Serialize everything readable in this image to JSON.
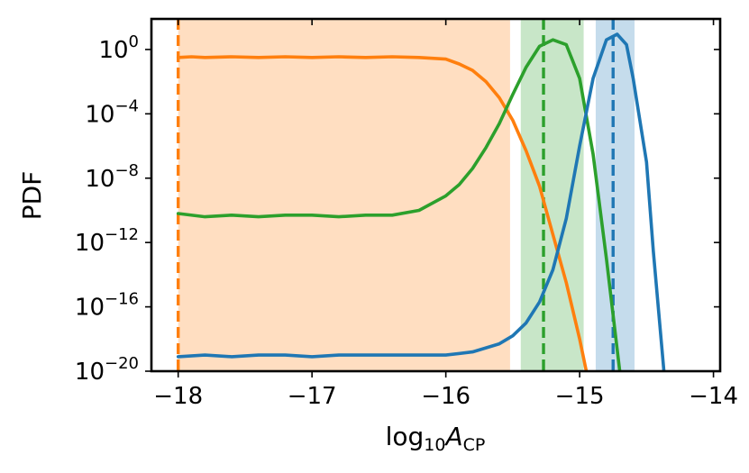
{
  "chart_data": {
    "type": "line",
    "title": "",
    "xlabel": "log10ACP",
    "xlabel_parts": {
      "base": "log",
      "base_sub": "10",
      "var": "A",
      "var_sub": "CP"
    },
    "ylabel": "PDF",
    "xlim": [
      -18.2,
      -13.95
    ],
    "ylim_log10": [
      -20,
      1.9
    ],
    "yscale": "log",
    "grid": false,
    "legend": "none",
    "x_ticks": [
      {
        "value": -18,
        "label": "−18"
      },
      {
        "value": -17,
        "label": "−17"
      },
      {
        "value": -16,
        "label": "−16"
      },
      {
        "value": -15,
        "label": "−15"
      },
      {
        "value": -14,
        "label": "−14"
      }
    ],
    "y_ticks": [
      {
        "exp": 0,
        "base": "10",
        "sup": "0"
      },
      {
        "exp": -4,
        "base": "10",
        "sup": "−4"
      },
      {
        "exp": -8,
        "base": "10",
        "sup": "−8"
      },
      {
        "exp": -12,
        "base": "10",
        "sup": "−12"
      },
      {
        "exp": -16,
        "base": "10",
        "sup": "−16"
      },
      {
        "exp": -20,
        "base": "10",
        "sup": "−20"
      }
    ],
    "series": [
      {
        "color": "#ff7f0e",
        "x": [
          -18.0,
          -17.9,
          -17.8,
          -17.6,
          -17.4,
          -17.2,
          -17.0,
          -16.8,
          -16.6,
          -16.4,
          -16.2,
          -16.0,
          -15.9,
          -15.8,
          -15.7,
          -15.6,
          -15.5,
          -15.4,
          -15.3,
          -15.2,
          -15.1,
          -15.0,
          -14.95
        ],
        "log10_y": [
          -0.5,
          -0.45,
          -0.5,
          -0.45,
          -0.5,
          -0.45,
          -0.5,
          -0.45,
          -0.5,
          -0.45,
          -0.5,
          -0.6,
          -0.9,
          -1.3,
          -2.0,
          -3.0,
          -4.4,
          -6.3,
          -8.5,
          -11.5,
          -14.5,
          -18.0,
          -20.0
        ],
        "band": [
          -18.0,
          -15.52
        ],
        "marker": -18.0
      },
      {
        "color": "#2ca02c",
        "x": [
          -18.0,
          -17.8,
          -17.6,
          -17.4,
          -17.2,
          -17.0,
          -16.8,
          -16.6,
          -16.4,
          -16.2,
          -16.0,
          -15.9,
          -15.8,
          -15.7,
          -15.6,
          -15.5,
          -15.4,
          -15.3,
          -15.2,
          -15.1,
          -15.0,
          -14.9,
          -14.8,
          -14.7
        ],
        "log10_y": [
          -10.2,
          -10.4,
          -10.3,
          -10.4,
          -10.3,
          -10.3,
          -10.4,
          -10.3,
          -10.3,
          -10.0,
          -9.1,
          -8.4,
          -7.4,
          -6.1,
          -4.6,
          -2.8,
          -1.1,
          0.2,
          0.6,
          0.3,
          -1.8,
          -6.5,
          -13.0,
          -20.0
        ],
        "band": [
          -15.44,
          -14.97
        ],
        "marker": -15.27
      },
      {
        "color": "#1f77b4",
        "x": [
          -18.0,
          -17.8,
          -17.6,
          -17.4,
          -17.2,
          -17.0,
          -16.8,
          -16.6,
          -16.4,
          -16.2,
          -16.0,
          -15.8,
          -15.6,
          -15.5,
          -15.4,
          -15.3,
          -15.2,
          -15.1,
          -15.0,
          -14.9,
          -14.8,
          -14.72,
          -14.65,
          -14.6,
          -14.5,
          -14.45,
          -14.37
        ],
        "log10_y": [
          -19.1,
          -19.0,
          -19.1,
          -19.0,
          -19.0,
          -19.1,
          -19.0,
          -19.0,
          -19.0,
          -19.0,
          -19.0,
          -18.8,
          -18.3,
          -17.8,
          -17.0,
          -15.7,
          -13.7,
          -10.5,
          -6.0,
          -1.8,
          0.6,
          0.95,
          0.3,
          -1.8,
          -7.0,
          -12.5,
          -20.0
        ],
        "band": [
          -14.88,
          -14.59
        ],
        "marker": -14.75
      }
    ]
  }
}
